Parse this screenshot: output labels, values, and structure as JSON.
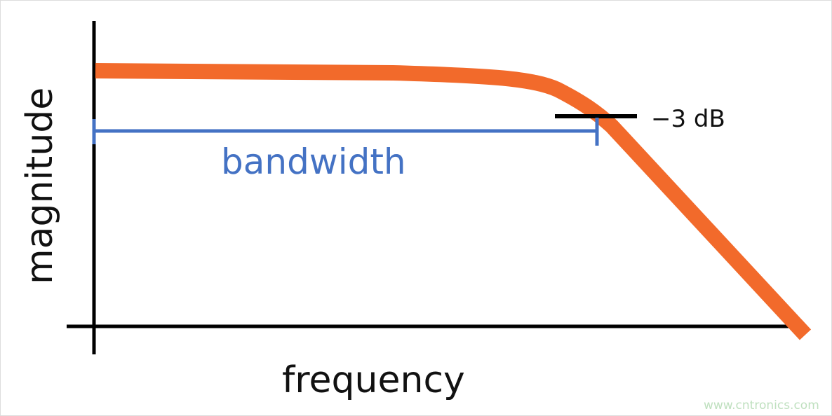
{
  "diagram": {
    "y_axis_label": "magnitude",
    "x_axis_label": "frequency",
    "bandwidth_label": "bandwidth",
    "cutoff_label": "−3 dB",
    "watermark": "www.cntronics.com",
    "colors": {
      "response_curve": "#f26a2b",
      "bandwidth": "#4472c4",
      "axes": "#000000"
    }
  }
}
